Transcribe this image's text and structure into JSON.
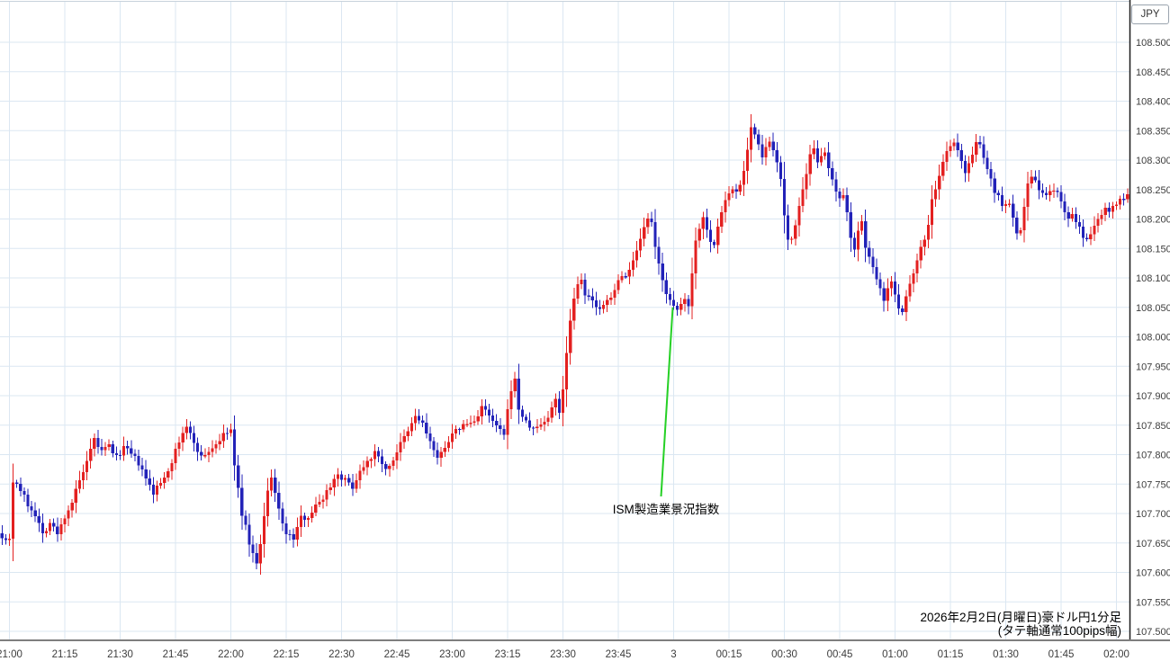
{
  "axis_unit": "JPY",
  "title": {
    "line1": "2026年2月2日(月曜日)豪ドル円1分足",
    "line2": "(タテ軸通常100pips幅)"
  },
  "annotation": {
    "text": "ISM製造業景況指数",
    "time": "00:00",
    "price": 108.05
  },
  "chart_data": {
    "type": "candlestick",
    "instrument": "豪ドル円",
    "timeframe": "1分足",
    "date": "2026年2月2日(月曜日)",
    "y_axis": {
      "unit": "JPY",
      "min": 107.5,
      "max": 108.5,
      "tick_step": 0.05,
      "label_format": "3dp"
    },
    "x_axis": {
      "tick_interval_min": 15,
      "tick_labels": [
        "21:00",
        "21:15",
        "21:30",
        "21:45",
        "22:00",
        "22:15",
        "22:30",
        "22:45",
        "23:00",
        "23:15",
        "23:30",
        "23:45",
        "3",
        "00:15",
        "00:30",
        "00:45",
        "01:00",
        "01:15",
        "01:30",
        "01:45",
        "02:00"
      ]
    },
    "grid": true,
    "colors": {
      "up": "#e32020",
      "down": "#2222b8",
      "grid": "#dbe7f2",
      "axis_line": "#1a1a1a",
      "bottom_line": "#7f7f7f",
      "top_line": "#c8d2dc",
      "annotation_line": "#25d025",
      "tick_text": "#3c3c3c"
    },
    "t_start": -2,
    "t_end": 303,
    "annotation_anchor": {
      "t": 180,
      "price": 108.05
    },
    "price_path_anchors": [
      [
        -3,
        107.67
      ],
      [
        -1,
        107.655
      ],
      [
        0,
        107.66
      ],
      [
        1,
        107.755
      ],
      [
        2,
        107.75
      ],
      [
        3,
        107.74
      ],
      [
        5,
        107.715
      ],
      [
        7,
        107.7
      ],
      [
        9,
        107.665
      ],
      [
        11,
        107.685
      ],
      [
        13,
        107.665
      ],
      [
        15,
        107.695
      ],
      [
        17,
        107.72
      ],
      [
        19,
        107.755
      ],
      [
        21,
        107.785
      ],
      [
        23,
        107.825
      ],
      [
        25,
        107.805
      ],
      [
        27,
        107.815
      ],
      [
        29,
        107.795
      ],
      [
        31,
        107.812
      ],
      [
        33,
        107.8
      ],
      [
        35,
        107.785
      ],
      [
        37,
        107.758
      ],
      [
        39,
        107.735
      ],
      [
        41,
        107.752
      ],
      [
        43,
        107.775
      ],
      [
        45,
        107.805
      ],
      [
        47,
        107.838
      ],
      [
        48,
        107.845
      ],
      [
        50,
        107.822
      ],
      [
        52,
        107.795
      ],
      [
        54,
        107.806
      ],
      [
        56,
        107.818
      ],
      [
        58,
        107.832
      ],
      [
        60,
        107.842
      ],
      [
        61,
        107.78
      ],
      [
        63,
        107.7
      ],
      [
        65,
        107.652
      ],
      [
        66,
        107.63
      ],
      [
        67,
        107.618
      ],
      [
        68,
        107.648
      ],
      [
        70,
        107.738
      ],
      [
        71,
        107.758
      ],
      [
        73,
        107.708
      ],
      [
        75,
        107.665
      ],
      [
        77,
        107.658
      ],
      [
        79,
        107.692
      ],
      [
        81,
        107.696
      ],
      [
        83,
        107.712
      ],
      [
        85,
        107.728
      ],
      [
        87,
        107.748
      ],
      [
        89,
        107.768
      ],
      [
        91,
        107.756
      ],
      [
        93,
        107.746
      ],
      [
        95,
        107.772
      ],
      [
        97,
        107.792
      ],
      [
        99,
        107.802
      ],
      [
        101,
        107.788
      ],
      [
        102,
        107.772
      ],
      [
        104,
        107.792
      ],
      [
        106,
        107.818
      ],
      [
        108,
        107.838
      ],
      [
        110,
        107.866
      ],
      [
        112,
        107.852
      ],
      [
        114,
        107.822
      ],
      [
        116,
        107.79
      ],
      [
        118,
        107.816
      ],
      [
        120,
        107.832
      ],
      [
        122,
        107.846
      ],
      [
        124,
        107.852
      ],
      [
        126,
        107.856
      ],
      [
        128,
        107.882
      ],
      [
        130,
        107.864
      ],
      [
        132,
        107.848
      ],
      [
        134,
        107.832
      ],
      [
        136,
        107.912
      ],
      [
        137,
        107.926
      ],
      [
        138,
        107.878
      ],
      [
        140,
        107.854
      ],
      [
        142,
        107.843
      ],
      [
        144,
        107.852
      ],
      [
        146,
        107.862
      ],
      [
        148,
        107.896
      ],
      [
        149,
        107.874
      ],
      [
        150,
        107.912
      ],
      [
        151,
        107.972
      ],
      [
        152,
        108.032
      ],
      [
        153,
        108.066
      ],
      [
        154,
        108.09
      ],
      [
        155,
        108.102
      ],
      [
        156,
        108.072
      ],
      [
        158,
        108.06
      ],
      [
        160,
        108.044
      ],
      [
        162,
        108.06
      ],
      [
        164,
        108.082
      ],
      [
        166,
        108.102
      ],
      [
        168,
        108.112
      ],
      [
        170,
        108.142
      ],
      [
        172,
        108.182
      ],
      [
        173,
        108.202
      ],
      [
        174,
        108.19
      ],
      [
        175,
        108.15
      ],
      [
        176,
        108.122
      ],
      [
        177,
        108.1
      ],
      [
        178,
        108.076
      ],
      [
        179,
        108.06
      ],
      [
        180,
        108.048
      ],
      [
        181,
        108.044
      ],
      [
        182,
        108.056
      ],
      [
        183,
        108.062
      ],
      [
        184,
        108.056
      ],
      [
        185,
        108.112
      ],
      [
        186,
        108.162
      ],
      [
        187,
        108.186
      ],
      [
        188,
        108.202
      ],
      [
        189,
        108.186
      ],
      [
        190,
        108.164
      ],
      [
        191,
        108.154
      ],
      [
        192,
        108.186
      ],
      [
        193,
        108.212
      ],
      [
        194,
        108.232
      ],
      [
        195,
        108.242
      ],
      [
        196,
        108.252
      ],
      [
        197,
        108.246
      ],
      [
        198,
        108.262
      ],
      [
        199,
        108.282
      ],
      [
        200,
        108.322
      ],
      [
        201,
        108.356
      ],
      [
        202,
        108.344
      ],
      [
        203,
        108.324
      ],
      [
        204,
        108.302
      ],
      [
        205,
        108.322
      ],
      [
        206,
        108.33
      ],
      [
        207,
        108.312
      ],
      [
        208,
        108.296
      ],
      [
        209,
        108.272
      ],
      [
        210,
        108.202
      ],
      [
        211,
        108.162
      ],
      [
        212,
        108.168
      ],
      [
        213,
        108.192
      ],
      [
        214,
        108.222
      ],
      [
        215,
        108.246
      ],
      [
        216,
        108.272
      ],
      [
        217,
        108.306
      ],
      [
        218,
        108.316
      ],
      [
        219,
        108.3
      ],
      [
        220,
        108.312
      ],
      [
        221,
        108.316
      ],
      [
        222,
        108.282
      ],
      [
        223,
        108.262
      ],
      [
        224,
        108.246
      ],
      [
        225,
        108.232
      ],
      [
        226,
        108.236
      ],
      [
        227,
        108.212
      ],
      [
        228,
        108.172
      ],
      [
        229,
        108.152
      ],
      [
        230,
        108.176
      ],
      [
        231,
        108.192
      ],
      [
        232,
        108.156
      ],
      [
        233,
        108.132
      ],
      [
        234,
        108.116
      ],
      [
        235,
        108.102
      ],
      [
        236,
        108.086
      ],
      [
        237,
        108.066
      ],
      [
        238,
        108.082
      ],
      [
        239,
        108.092
      ],
      [
        240,
        108.072
      ],
      [
        241,
        108.052
      ],
      [
        242,
        108.046
      ],
      [
        243,
        108.066
      ],
      [
        244,
        108.092
      ],
      [
        245,
        108.112
      ],
      [
        246,
        108.132
      ],
      [
        247,
        108.152
      ],
      [
        248,
        108.166
      ],
      [
        249,
        108.192
      ],
      [
        250,
        108.232
      ],
      [
        251,
        108.252
      ],
      [
        252,
        108.272
      ],
      [
        253,
        108.296
      ],
      [
        254,
        108.312
      ],
      [
        255,
        108.326
      ],
      [
        256,
        108.332
      ],
      [
        257,
        108.312
      ],
      [
        258,
        108.296
      ],
      [
        259,
        108.282
      ],
      [
        260,
        108.296
      ],
      [
        261,
        108.312
      ],
      [
        262,
        108.326
      ],
      [
        263,
        108.326
      ],
      [
        264,
        108.302
      ],
      [
        265,
        108.286
      ],
      [
        266,
        108.272
      ],
      [
        267,
        108.246
      ],
      [
        268,
        108.236
      ],
      [
        269,
        108.226
      ],
      [
        270,
        108.222
      ],
      [
        271,
        108.226
      ],
      [
        272,
        108.202
      ],
      [
        273,
        108.172
      ],
      [
        274,
        108.182
      ],
      [
        275,
        108.222
      ],
      [
        276,
        108.256
      ],
      [
        277,
        108.276
      ],
      [
        278,
        108.262
      ],
      [
        279,
        108.252
      ],
      [
        280,
        108.242
      ],
      [
        281,
        108.236
      ],
      [
        282,
        108.246
      ],
      [
        283,
        108.252
      ],
      [
        284,
        108.242
      ],
      [
        285,
        108.226
      ],
      [
        286,
        108.212
      ],
      [
        287,
        108.202
      ],
      [
        288,
        108.212
      ],
      [
        289,
        108.196
      ],
      [
        290,
        108.182
      ],
      [
        291,
        108.166
      ],
      [
        292,
        108.162
      ],
      [
        293,
        108.176
      ],
      [
        294,
        108.186
      ],
      [
        295,
        108.202
      ],
      [
        296,
        108.212
      ],
      [
        297,
        108.222
      ],
      [
        298,
        108.216
      ],
      [
        299,
        108.226
      ],
      [
        300,
        108.222
      ],
      [
        301,
        108.232
      ],
      [
        302,
        108.236
      ],
      [
        303,
        108.242
      ]
    ]
  }
}
